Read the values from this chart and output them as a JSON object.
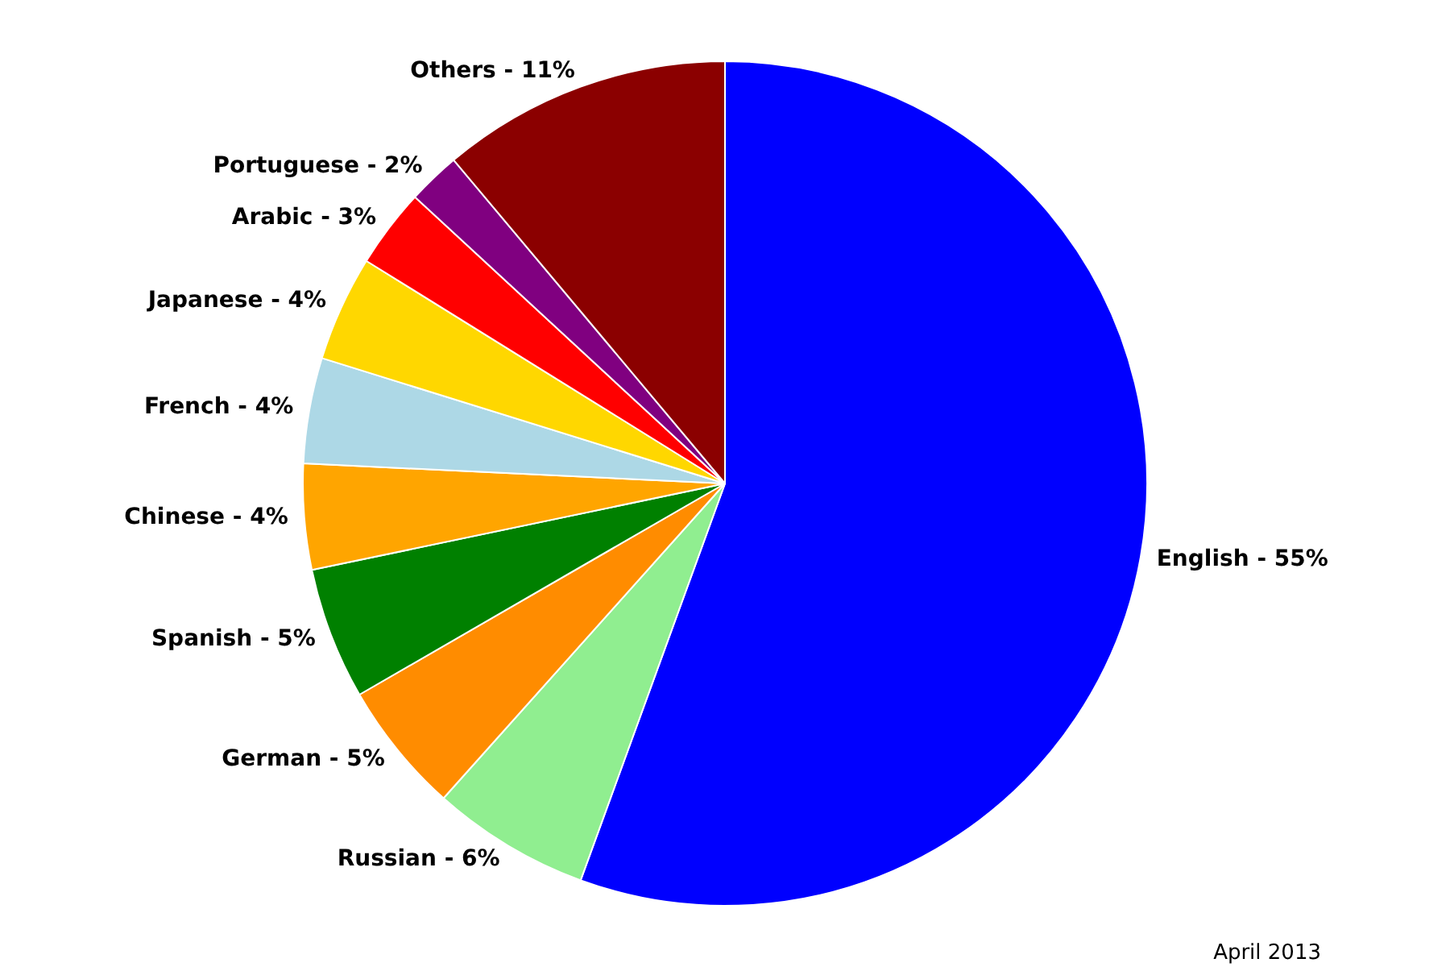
{
  "chart_data": {
    "type": "pie",
    "categories": [
      "English - 55%",
      "Russian - 6%",
      "German - 5%",
      "Spanish - 5%",
      "Chinese - 4%",
      "French - 4%",
      "Japanese - 4%",
      "Arabic - 3%",
      "Portuguese - 2%",
      "Others - 11%"
    ],
    "values": [
      55,
      6,
      5,
      5,
      4,
      4,
      4,
      3,
      2,
      11
    ],
    "colors": [
      "#0000ff",
      "#90ee90",
      "#ff8c00",
      "#008000",
      "#ffa500",
      "#add8e6",
      "#ffd700",
      "#ff0000",
      "#800080",
      "#8b0000"
    ],
    "legend": false,
    "annotations": [
      "April 2013"
    ]
  }
}
